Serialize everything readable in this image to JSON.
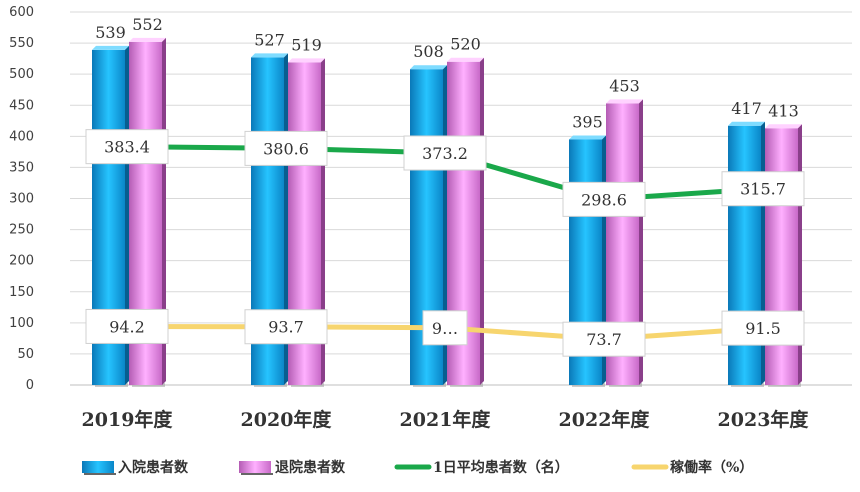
{
  "chart_data": {
    "type": "bar",
    "categories": [
      "2019年度",
      "2020年度",
      "2021年度",
      "2022年度",
      "2023年度"
    ],
    "ylim": [
      0,
      600
    ],
    "yticks": [
      0,
      50,
      100,
      150,
      200,
      250,
      300,
      350,
      400,
      450,
      500,
      550,
      600
    ],
    "grid": true,
    "legend_position": "bottom",
    "series": [
      {
        "name": "入院患者数",
        "kind": "bar",
        "color": "#1ab0f0",
        "values": [
          539,
          527,
          508,
          395,
          417
        ],
        "labels": [
          "539",
          "527",
          "508",
          "395",
          "417"
        ]
      },
      {
        "name": "退院患者数",
        "kind": "bar",
        "color": "#f08ef0",
        "values": [
          552,
          519,
          520,
          453,
          413
        ],
        "labels": [
          "552",
          "519",
          "520",
          "453",
          "413"
        ]
      },
      {
        "name": "1日平均患者数（名）",
        "kind": "line",
        "color": "#1aa84a",
        "values": [
          383.4,
          380.6,
          373.2,
          298.6,
          315.7
        ],
        "labels": [
          "383.4",
          "380.6",
          "373.2",
          "298.6",
          "315.7"
        ]
      },
      {
        "name": "稼働率（%）",
        "kind": "line",
        "color": "#f7d56e",
        "values": [
          94.2,
          93.7,
          92.0,
          73.7,
          91.5
        ],
        "labels": [
          "94.2",
          "93.7",
          "9…",
          "73.7",
          "91.5"
        ]
      }
    ]
  }
}
